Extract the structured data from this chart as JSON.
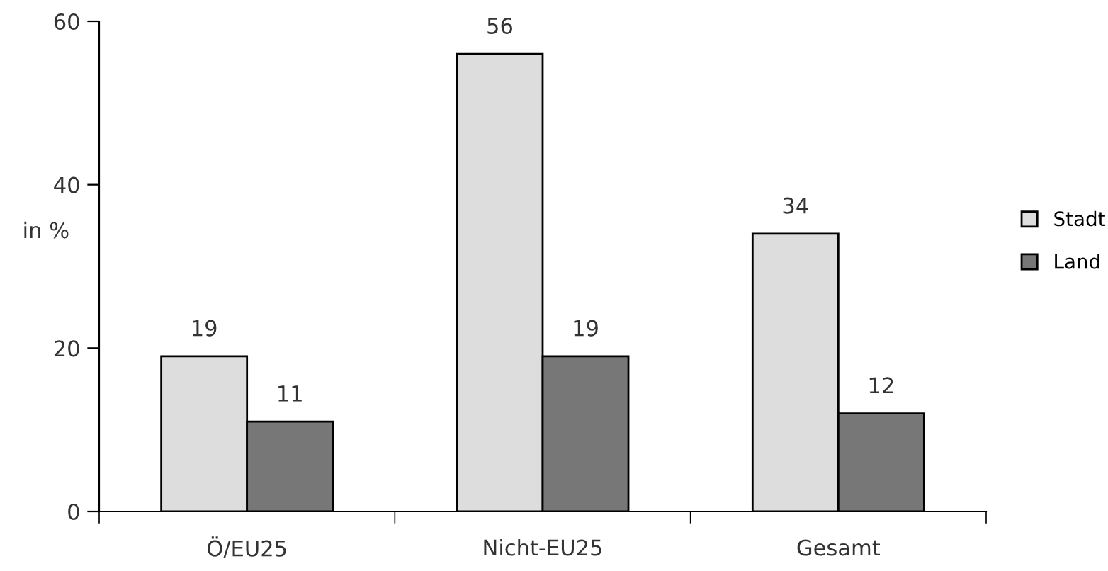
{
  "chart_data": {
    "type": "bar",
    "ylabel": "in %",
    "categories": [
      "Ö/EU25",
      "Nicht-EU25",
      "Gesamt"
    ],
    "series": [
      {
        "name": "Stadt",
        "color": "#dddddd",
        "values": [
          19,
          56,
          34
        ]
      },
      {
        "name": "Land",
        "color": "#777777",
        "values": [
          11,
          19,
          12
        ]
      }
    ],
    "ylim": [
      0,
      60
    ],
    "yticks": [
      0,
      20,
      40,
      60
    ],
    "grid": false,
    "legend": "right",
    "data_labels": true
  }
}
